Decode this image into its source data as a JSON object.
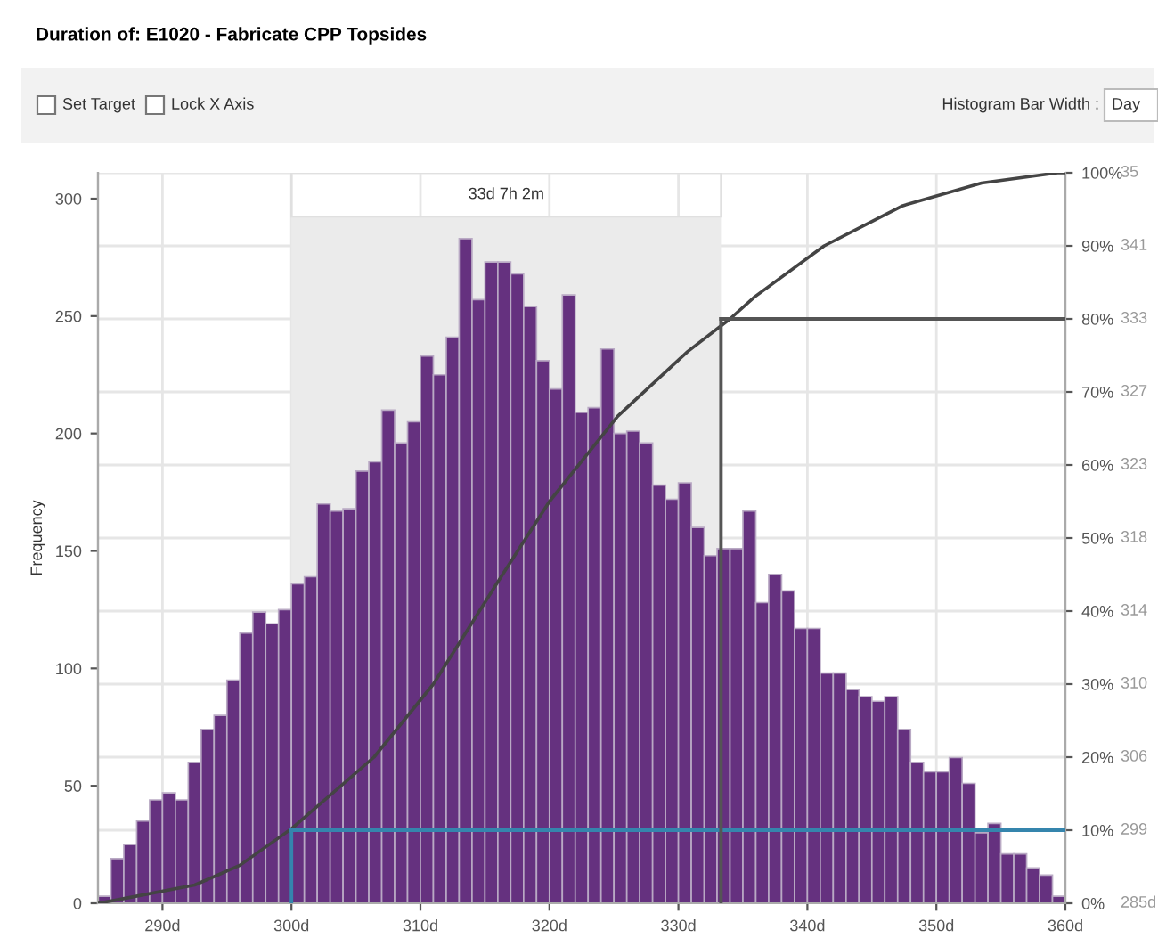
{
  "chart_data": {
    "type": "histogram",
    "title": "Duration of: E1020 - Fabricate CPP Topsides",
    "ylabel": "Frequency",
    "annotations": [
      "Set Target",
      "Lock X Axis",
      "Histogram Bar Width :",
      "Day",
      "285d",
      "299",
      "306",
      "310",
      "314",
      "318",
      "323",
      "327",
      "333",
      "341",
      "35"
    ],
    "series": [
      {
        "color": "#65317f",
        "bins": [
          285,
          286,
          287,
          288,
          289,
          290,
          291,
          292,
          293,
          294,
          295,
          296,
          297,
          298,
          299,
          300,
          301,
          302,
          303,
          304,
          305,
          306,
          307,
          308,
          309,
          310,
          311,
          312,
          313,
          314,
          315,
          316,
          317,
          318,
          319,
          320,
          321,
          322,
          323,
          324,
          325,
          326,
          327,
          328,
          329,
          330,
          331,
          332,
          333,
          334,
          335,
          336,
          337,
          338,
          339,
          340,
          341,
          342,
          343,
          344,
          345,
          346,
          347,
          348,
          349,
          350,
          351,
          352,
          353,
          354,
          355,
          356,
          357,
          358,
          359,
          360
        ],
        "values": [
          3,
          19,
          25,
          35,
          44,
          47,
          44,
          60,
          74,
          80,
          95,
          115,
          124,
          119,
          125,
          136,
          139,
          170,
          167,
          168,
          184,
          188,
          210,
          196,
          205,
          233,
          225,
          241,
          283,
          257,
          273,
          273,
          268,
          254,
          231,
          219,
          259,
          209,
          211,
          236,
          200,
          201,
          196,
          178,
          172,
          179,
          160,
          148,
          151,
          151,
          167,
          128,
          140,
          133,
          117,
          117,
          98,
          98,
          91,
          88,
          86,
          88,
          74,
          60,
          56,
          56,
          62,
          51,
          30,
          34,
          21,
          21,
          15,
          12,
          3
        ]
      },
      {
        "type": "line",
        "axis": "y2",
        "color": "#444444",
        "x": [
          285,
          286.6,
          292.5,
          296,
          300,
          306.4,
          311,
          316,
          320,
          325.3,
          330.7,
          334,
          335.9,
          341.3,
          347.4,
          353.5,
          359.4,
          360
        ],
        "values": [
          0,
          0.5,
          2.5,
          5.2,
          10.2,
          20,
          30,
          44,
          55,
          66.7,
          75.5,
          80,
          83,
          90,
          95.5,
          98.6,
          100,
          100
        ]
      }
    ],
    "xlim": [
      285,
      360
    ],
    "xticks": [
      {
        "value": 290,
        "label": "290d"
      },
      {
        "value": 300,
        "label": "300d"
      },
      {
        "value": 310,
        "label": "310d"
      },
      {
        "value": 320,
        "label": "320d"
      },
      {
        "value": 330,
        "label": "330d"
      },
      {
        "value": 340,
        "label": "340d"
      },
      {
        "value": 350,
        "label": "350d"
      },
      {
        "value": 360,
        "label": "360d"
      }
    ],
    "ylim": [
      0,
      311
    ],
    "yticks": [
      0,
      50,
      100,
      150,
      200,
      250,
      300
    ],
    "y2lim": [
      0,
      100
    ],
    "y2ticks": [
      {
        "value": 0,
        "label": "0%"
      },
      {
        "value": 10,
        "label": "10%"
      },
      {
        "value": 20,
        "label": "20%"
      },
      {
        "value": 30,
        "label": "30%"
      },
      {
        "value": 40,
        "label": "40%"
      },
      {
        "value": 50,
        "label": "50%"
      },
      {
        "value": 60,
        "label": "60%"
      },
      {
        "value": 70,
        "label": "70%"
      },
      {
        "value": 80,
        "label": "80%"
      },
      {
        "value": 90,
        "label": "90%"
      },
      {
        "value": 100,
        "label": "100%"
      }
    ],
    "bands": [
      {
        "axis": "x",
        "from": 300,
        "to": 333.3,
        "label": "33d 7h 2m",
        "color": "#ebebeb"
      }
    ],
    "ref_lines": [
      {
        "axis": "x",
        "value": 300,
        "color": "#3585ad"
      },
      {
        "axis": "y2",
        "value": 10,
        "color": "#3585ad"
      },
      {
        "axis": "x",
        "value": 333.3,
        "color": "#555555"
      },
      {
        "axis": "y2",
        "value": 80,
        "color": "#555555"
      }
    ],
    "grid": true,
    "legend": false
  }
}
